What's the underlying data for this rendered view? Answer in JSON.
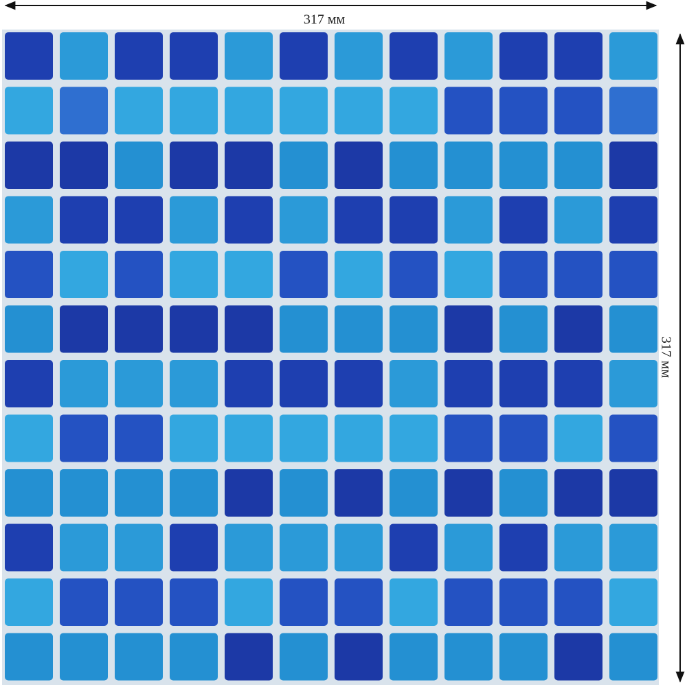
{
  "width_label": "317 мм",
  "height_label": "317 мм"
}
